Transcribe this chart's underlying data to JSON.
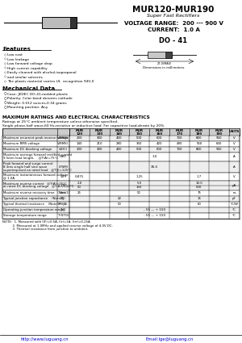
{
  "title": "MUR120-MUR190",
  "subtitle": "Super Fast Rectifiers",
  "voltage_range": "VOLTAGE RANGE:  200 --- 900 V",
  "current": "CURRENT:  1.0 A",
  "package": "DO - 41",
  "features_title": "Features",
  "features": [
    "Low cost",
    "Low leakage",
    "Low forward voltage drop",
    "High current capability",
    "Easily cleaned with alcohol,isopropanol",
    "and similar solvents",
    "The plastic material carries UL  recognition 94V-0"
  ],
  "mech_title": "Mechanical Data",
  "mech": [
    "Case: JEDEC DO-41,molded plastic",
    "Polarity: Color band denotes cathode",
    "Weight: 0.012 ounces,0.34 grams",
    "Mounting position: Any"
  ],
  "table_title": "MAXIMUM RATINGS AND ELECTRICAL CHARACTERISTICS",
  "table_subtitle1": "Ratings at 25°C ambient temperature unless otherwise specified.",
  "table_subtitle2": "Single phase,half wave,60 Hz,resistive or inductive load. For capacitive load,derate by 20%.",
  "col_headers": [
    "MUR\n120",
    "MUR\n130",
    "MUR\n140",
    "MUR\n150",
    "MUR\n160",
    "MUR\n170",
    "MUR\n180",
    "MUR\n190",
    "UNITS"
  ],
  "rows": [
    {
      "param": "Maximum recurrent peak reverse voltage",
      "symbol": "V(RRM)",
      "values": [
        "200",
        "300",
        "400",
        "500",
        "600",
        "700",
        "800",
        "900"
      ],
      "unit": "V"
    },
    {
      "param": "Maximum RMS voltage",
      "symbol": "V(RMS)",
      "values": [
        "140",
        "210",
        "280",
        "350",
        "420",
        "490",
        "560",
        "630"
      ],
      "unit": "V"
    },
    {
      "param": "Maximum DC blocking voltage",
      "symbol": "V(DC)",
      "values": [
        "200",
        "300",
        "400",
        "500",
        "600",
        "700",
        "800",
        "900"
      ],
      "unit": "V"
    },
    {
      "param": "Maximum average forward rectified current",
      "param2": "9.5mm lead length,    @T(A)=75°C",
      "symbol": "I(AV)",
      "values": [
        "",
        "",
        "",
        "1.0",
        "",
        "",
        "",
        ""
      ],
      "unit": "A",
      "span": true
    },
    {
      "param": "Peak forward and surge current",
      "param2": "8.3ms single half sine wave",
      "param3": "superimposed on rated load   @T(J)=125°C",
      "symbol": "I(FSM)",
      "values": [
        "",
        "",
        "",
        "35.0",
        "",
        "",
        "",
        ""
      ],
      "unit": "A",
      "span": true
    },
    {
      "param": "Maximum instantaneous forward voltage",
      "param2": "@ 1.0A",
      "symbol": "V(F)",
      "values": [
        "0.875",
        "",
        "",
        "1.25",
        "",
        "",
        "1.7",
        ""
      ],
      "unit": "V"
    },
    {
      "param": "Maximum reverse current   @T(A)=25°C",
      "param2": "at rated DC blocking voltage   @T(A)=100°C",
      "symbol": "I(R)",
      "values2": [
        [
          "2.0",
          "",
          "",
          "5.0",
          "",
          "",
          "10.0",
          ""
        ],
        [
          "50",
          "",
          "",
          "150",
          "",
          "",
          "500",
          ""
        ]
      ],
      "unit": "μA"
    },
    {
      "param": "Maximum reverse recovery time   (Note1)",
      "symbol": "t(rr)",
      "values": [
        "25",
        "",
        "",
        "50",
        "",
        "",
        "75",
        ""
      ],
      "unit": "ns"
    },
    {
      "param": "Typical junction capacitance    (Note2)",
      "symbol": "C(J)",
      "values": [
        "",
        "",
        "22",
        "",
        "",
        "",
        "15",
        ""
      ],
      "unit": "pF"
    },
    {
      "param": "Typical thermal resistance    (Note3)",
      "symbol": "R(θJA)",
      "values": [
        "",
        "",
        "50",
        "",
        "",
        "",
        "60",
        ""
      ],
      "unit": "°C/W"
    },
    {
      "param": "Operating junction temperature range",
      "symbol": "T(J)",
      "values": [
        "",
        "",
        "",
        "- 55 — + 150",
        "",
        "",
        "",
        ""
      ],
      "unit": "°C",
      "span": true
    },
    {
      "param": "Storage temperature range",
      "symbol": "T(STG)",
      "values": [
        "",
        "",
        "",
        "- 55 — + 150",
        "",
        "",
        "",
        ""
      ],
      "unit": "°C",
      "span": true
    }
  ],
  "notes_line1": "NOTE:  1. Measured with I(F)=0.5A, I(r)=1A, I(rr)=0.25A.",
  "notes_line2": "          2. Measured at 1.0MHz and applied reverse voltage of 4.0V DC.",
  "notes_line3": "          3. Thermal resistance from junction to ambient.",
  "website": "http://www.luguang.cn",
  "email": "Email:lge@luguang.cn",
  "bg_color": "#ffffff",
  "table_header_bg": "#cccccc",
  "row_bg_even": "#eeeeee",
  "row_bg_odd": "#ffffff"
}
